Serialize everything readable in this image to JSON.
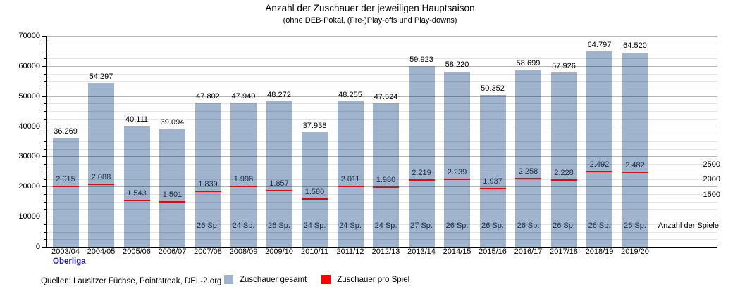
{
  "chart_data": {
    "type": "bar",
    "title": "Anzahl der Zuschauer der jeweiligen Hauptsaison",
    "subtitle": "(ohne DEB-Pokal, (Pre-)Play-offs und Play-downs)",
    "categories": [
      "2003/04",
      "2004/05",
      "2005/06",
      "2006/07",
      "2007/08",
      "2008/09",
      "2009/10",
      "2010/11",
      "2011/12",
      "2012/13",
      "2013/14",
      "2014/15",
      "2015/16",
      "2016/17",
      "2017/18",
      "2018/19",
      "2019/20"
    ],
    "series": [
      {
        "name": "Zuschauer gesamt",
        "color": "#a0b4cd",
        "values": [
          36269,
          54297,
          40111,
          39094,
          47802,
          47940,
          48272,
          37938,
          48255,
          47524,
          59923,
          58220,
          50352,
          58699,
          57926,
          64797,
          64520
        ],
        "labels": [
          "36.269",
          "54.297",
          "40.111",
          "39.094",
          "47.802",
          "47.940",
          "48.272",
          "37.938",
          "48.255",
          "47.524",
          "59.923",
          "58.220",
          "50.352",
          "58.699",
          "57.926",
          "64.797",
          "64.520"
        ]
      },
      {
        "name": "Zuschauer pro Spiel",
        "color": "#f20000",
        "axis": "right",
        "right_axis_scale_factor": 10,
        "values": [
          2015,
          2088,
          1543,
          1501,
          1839,
          1998,
          1857,
          1580,
          2011,
          1980,
          2219,
          2239,
          1937,
          2258,
          2228,
          2492,
          2482
        ],
        "labels": [
          "2.015",
          "2.088",
          "1.543",
          "1.501",
          "1.839",
          "1.998",
          "1.857",
          "1.580",
          "2.011",
          "1.980",
          "2.219",
          "2.239",
          "1.937",
          "2.258",
          "2.228",
          "2.492",
          "2.482"
        ]
      }
    ],
    "games_labels": [
      "",
      "",
      "",
      "",
      "26 Sp.",
      "24 Sp.",
      "26 Sp.",
      "24 Sp.",
      "24 Sp.",
      "24 Sp.",
      "27 Sp.",
      "26 Sp.",
      "26 Sp.",
      "26 Sp.",
      "26 Sp.",
      "26 Sp.",
      "26 Sp."
    ],
    "left_axis": {
      "min": 0,
      "max": 70000,
      "major_step": 10000,
      "minor_step": 2500,
      "tick_labels": [
        "0",
        "10000",
        "20000",
        "30000",
        "40000",
        "50000",
        "60000",
        "70000"
      ]
    },
    "right_axis": {
      "tick_labels": [
        "2500",
        "2000",
        "1500"
      ],
      "tick_values": [
        2500,
        2000,
        1500
      ],
      "title": "Anzahl der Spiele"
    },
    "grid": "major+minor horizontal",
    "legend_position": "bottom"
  },
  "footer": {
    "league_label": "Oberliga",
    "source": "Quellen: Lausitzer Füchse, Pointstreak, DEL-2.org",
    "legend": [
      {
        "label": "Zuschauer gesamt",
        "color": "#a0b4cd"
      },
      {
        "label": "Zuschauer pro Spiel",
        "color": "#ff0000"
      }
    ]
  }
}
